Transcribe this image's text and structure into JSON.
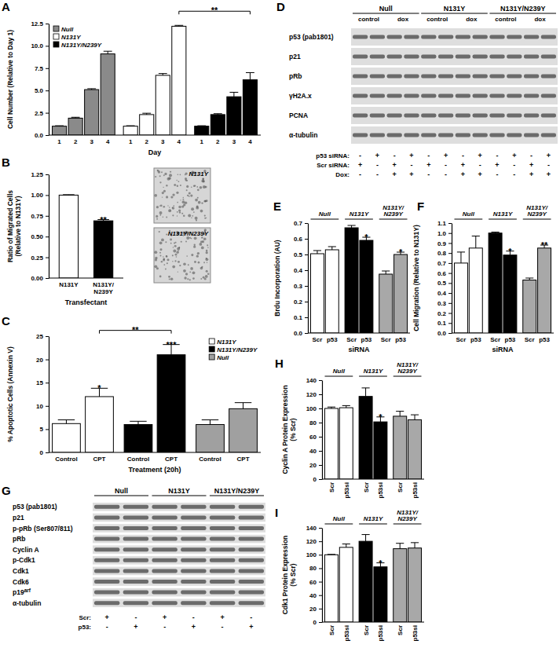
{
  "chart_data": [
    {
      "type": "bar",
      "title": "A",
      "ylabel": "Cell Number (Relative to Day 1)",
      "xlabel": "Day",
      "categories": [
        "1",
        "2",
        "3",
        "4"
      ],
      "series": [
        {
          "name": "Null",
          "color": "#8a8a8a",
          "values": [
            1.0,
            1.9,
            5.1,
            9.1
          ],
          "errors": [
            0.05,
            0.1,
            0.1,
            0.3
          ]
        },
        {
          "name": "N131Y",
          "color": "#ffffff",
          "values": [
            1.0,
            2.3,
            6.7,
            12.2
          ],
          "errors": [
            0.05,
            0.15,
            0.2,
            0.1
          ]
        },
        {
          "name": "N131Y/N239Y",
          "color": "#000000",
          "values": [
            1.0,
            2.3,
            4.3,
            6.2
          ],
          "errors": [
            0.05,
            0.1,
            0.5,
            0.8
          ]
        }
      ],
      "ylim": [
        0,
        12.5
      ],
      "yticks": [
        {
          "value": 0,
          "label": "0.0"
        },
        2.5,
        {
          "value": 5,
          "label": "5.0"
        },
        7.5,
        {
          "value": 10,
          "label": "10.0"
        },
        12.5
      ],
      "legend": "top-left",
      "annotations": [
        {
          "text": "**",
          "from": [
            "N131Y",
            "4"
          ],
          "to": [
            "N131Y/N239Y",
            "4"
          ]
        }
      ]
    },
    {
      "type": "bar",
      "title": "B",
      "ylabel": "Ratio of Migrated Cells (Relative to N131Y)",
      "xlabel": "Transfectant",
      "categories": [
        "N131Y",
        "N131Y/N239Y"
      ],
      "values": [
        1.0,
        0.69
      ],
      "errors": [
        0.005,
        0.015
      ],
      "colors": [
        "#ffffff",
        "#000000"
      ],
      "ylim": [
        0,
        1.25
      ],
      "yticks": [
        {
          "value": 0,
          "label": "0.00"
        },
        0.25,
        {
          "value": 0.5,
          "label": "0.50"
        },
        0.75,
        {
          "value": 1,
          "label": "1.00"
        },
        1.25
      ],
      "annotations": [
        {
          "text": "**",
          "category": "N131Y/N239Y"
        }
      ]
    },
    {
      "type": "bar",
      "title": "C",
      "ylabel": "% Apoptotic Cells (Annexin V)",
      "xlabel": "Treatment (20h)",
      "categories": [
        "Control",
        "CPT"
      ],
      "series": [
        {
          "name": "N131Y",
          "color": "#ffffff",
          "values": [
            6.2,
            12.0
          ],
          "errors": [
            0.8,
            1.8
          ]
        },
        {
          "name": "N131Y/N239Y",
          "color": "#000000",
          "values": [
            6.0,
            21.0
          ],
          "errors": [
            0.7,
            2.2
          ]
        },
        {
          "name": "Null",
          "color": "#a0a0a0",
          "values": [
            6.0,
            9.4
          ],
          "errors": [
            1.0,
            1.3
          ]
        }
      ],
      "ylim": [
        0,
        25
      ],
      "yticks": [
        0,
        5,
        10,
        15,
        20,
        25
      ],
      "legend": "top-right",
      "annotations": [
        {
          "text": "*",
          "series": "N131Y",
          "category": "CPT"
        },
        {
          "text": "***",
          "series": "N131Y/N239Y",
          "category": "CPT"
        },
        {
          "text": "**",
          "from": [
            "N131Y",
            "CPT"
          ],
          "to": [
            "N131Y/N239Y",
            "CPT"
          ]
        }
      ]
    },
    {
      "type": "bar",
      "title": "E",
      "ylabel": "Brdu Incorporation (AU)",
      "xlabel": "siRNA",
      "categories": [
        "Scr",
        "p53"
      ],
      "series": [
        {
          "name": "Null",
          "color": "#ffffff",
          "values": [
            0.505,
            0.53
          ],
          "errors": [
            0.02,
            0.02
          ]
        },
        {
          "name": "N131Y",
          "color": "#000000",
          "values": [
            0.67,
            0.59
          ],
          "errors": [
            0.015,
            0.02
          ]
        },
        {
          "name": "N131Y/N239Y",
          "color": "#a8a8a8",
          "values": [
            0.375,
            0.5
          ],
          "errors": [
            0.02,
            0.015
          ]
        }
      ],
      "ylim": [
        0,
        0.7
      ],
      "yticks": [
        {
          "value": 0,
          "label": "0.0"
        },
        0.1,
        0.2,
        0.3,
        0.4,
        0.5,
        0.6,
        0.7
      ],
      "legend": "top",
      "annotations": [
        {
          "text": "*",
          "series": "N131Y",
          "category": "p53"
        },
        {
          "text": "*",
          "series": "N131Y/N239Y",
          "category": "p53"
        }
      ]
    },
    {
      "type": "bar",
      "title": "F",
      "ylabel": "Cell Migration (Relative to N131Y)",
      "xlabel": "siRNA",
      "categories": [
        "Scr",
        "p53"
      ],
      "series": [
        {
          "name": "Null",
          "color": "#ffffff",
          "values": [
            0.7,
            0.85
          ],
          "errors": [
            0.11,
            0.12
          ]
        },
        {
          "name": "N131Y",
          "color": "#000000",
          "values": [
            1.0,
            0.78
          ],
          "errors": [
            0.01,
            0.04
          ]
        },
        {
          "name": "N131Y/N239Y",
          "color": "#a8a8a8",
          "values": [
            0.53,
            0.85
          ],
          "errors": [
            0.02,
            0.03
          ]
        }
      ],
      "ylim": [
        0,
        1.1
      ],
      "yticks": [
        {
          "value": 0,
          "label": "0.0"
        },
        0.1,
        0.2,
        0.3,
        0.4,
        0.5,
        0.6,
        0.7,
        0.8,
        0.9,
        {
          "value": 1,
          "label": "1.0"
        },
        1.1
      ],
      "legend": "top",
      "annotations": [
        {
          "text": "*",
          "series": "N131Y",
          "category": "p53"
        },
        {
          "text": "**",
          "series": "N131Y/N239Y",
          "category": "p53"
        }
      ]
    },
    {
      "type": "bar",
      "title": "H",
      "ylabel": "Cyclin A Protein Expression (% Scr)",
      "categories": [
        "Scr",
        "p53si"
      ],
      "series": [
        {
          "name": "Null",
          "color": "#ffffff",
          "values": [
            100,
            101
          ],
          "errors": [
            2,
            3
          ]
        },
        {
          "name": "N131Y",
          "color": "#000000",
          "values": [
            117,
            81
          ],
          "errors": [
            12,
            7
          ]
        },
        {
          "name": "N131Y/N239Y",
          "color": "#a8a8a8",
          "values": [
            89,
            84
          ],
          "errors": [
            7,
            7
          ]
        }
      ],
      "ylim": [
        0,
        140
      ],
      "yticks": [
        0,
        20,
        40,
        60,
        80,
        100,
        120,
        140
      ],
      "legend": "top",
      "annotations": [
        {
          "text": "*",
          "series": "N131Y",
          "category": "p53si"
        }
      ]
    },
    {
      "type": "bar",
      "title": "I",
      "ylabel": "Cdk1 Protein Expression (% Scr)",
      "categories": [
        "Scr",
        "p53si"
      ],
      "series": [
        {
          "name": "Null",
          "color": "#ffffff",
          "values": [
            100,
            111
          ],
          "errors": [
            0.5,
            5
          ]
        },
        {
          "name": "N131Y",
          "color": "#000000",
          "values": [
            120,
            82
          ],
          "errors": [
            10,
            6
          ]
        },
        {
          "name": "N131Y/N239Y",
          "color": "#a8a8a8",
          "values": [
            109,
            110
          ],
          "errors": [
            8,
            8
          ]
        }
      ],
      "ylim": [
        0,
        140
      ],
      "yticks": [
        0,
        20,
        40,
        60,
        80,
        100,
        120,
        140
      ],
      "legend": "top",
      "annotations": [
        {
          "text": "*",
          "series": "N131Y",
          "category": "p53si"
        }
      ]
    }
  ],
  "micrographs": {
    "labels": [
      "N131Y",
      "N131Y/N239Y"
    ]
  },
  "blots": [
    {
      "title": "D",
      "groups": [
        "Null",
        "N131Y",
        "N131Y/N239Y"
      ],
      "subgroups": [
        "control",
        "dox"
      ],
      "rows": [
        "p53 (pab1801)",
        "p21",
        "pRb",
        "γH2A.x",
        "PCNA",
        "α-tubulin"
      ],
      "conditions": [
        {
          "label": "p53 siRNA:",
          "signs": [
            "-",
            "+",
            "-",
            "+",
            "-",
            "+",
            "-",
            "+",
            "-",
            "+",
            "-",
            "+"
          ]
        },
        {
          "label": "Scr siRNA:",
          "signs": [
            "+",
            "-",
            "+",
            "-",
            "+",
            "-",
            "+",
            "-",
            "+",
            "-",
            "+",
            "-"
          ]
        },
        {
          "label": "Dox:",
          "signs": [
            "-",
            "-",
            "+",
            "+",
            "-",
            "-",
            "+",
            "+",
            "-",
            "-",
            "+",
            "+"
          ]
        }
      ]
    },
    {
      "title": "G",
      "groups": [
        "Null",
        "N131Y",
        "N131Y/N239Y"
      ],
      "rows": [
        "p53 (pab1801)",
        "p21",
        "p-pRb (Ser807/811)",
        "pRb",
        "Cyclin A",
        "p-Cdk1",
        "Cdk1",
        "Cdk6",
        {
          "text": "p19",
          "sup": "arf"
        },
        "α-tubulin"
      ],
      "conditions": [
        {
          "label": "Scr:",
          "signs": [
            "+",
            "-",
            "+",
            "-",
            "+",
            "-"
          ]
        },
        {
          "label": "p53:",
          "signs": [
            "-",
            "+",
            "-",
            "+",
            "-",
            "+"
          ]
        }
      ]
    }
  ]
}
